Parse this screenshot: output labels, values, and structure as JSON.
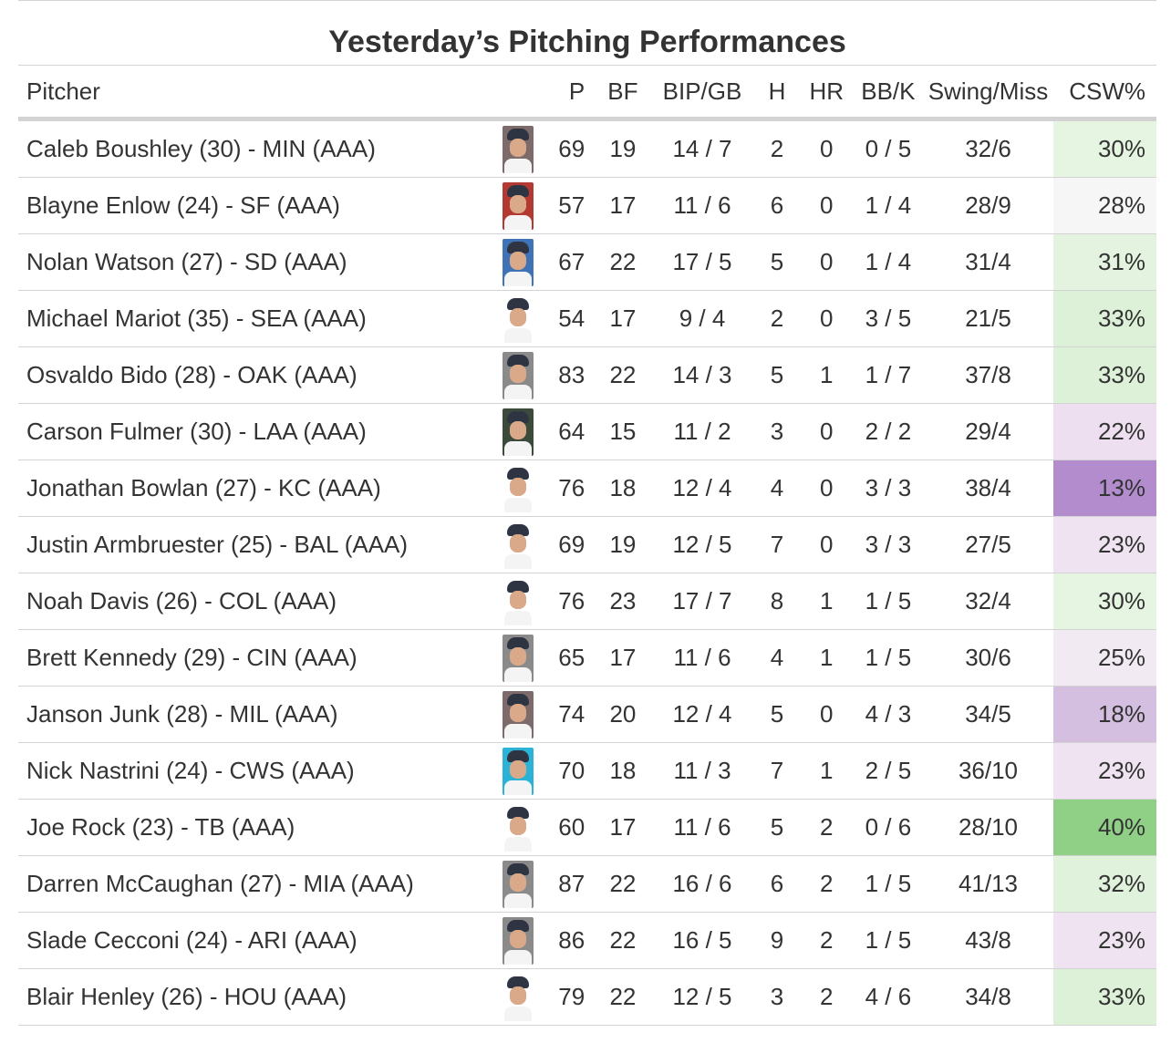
{
  "title": "Yesterday’s Pitching Performances",
  "columns": {
    "pitcher": "Pitcher",
    "p": "P",
    "bf": "BF",
    "bip_gb": "BIP/GB",
    "h": "H",
    "hr": "HR",
    "bb_k": "BB/K",
    "swing_miss": "Swing/Miss",
    "csw": "CSW%"
  },
  "rows": [
    {
      "name": "Caleb Boushley (30) - MIN (AAA)",
      "photo_icon": "player-headshot-icon",
      "photo_bg": "#7d6a6a",
      "p": "69",
      "bf": "19",
      "bip_gb": "14 / 7",
      "h": "2",
      "hr": "0",
      "bb_k": "0 / 5",
      "swing_miss": "32/6",
      "csw": "30%",
      "csw_color": "#e6f4e2"
    },
    {
      "name": "Blayne Enlow (24) - SF (AAA)",
      "photo_icon": "player-headshot-icon",
      "photo_bg": "#b23a32",
      "p": "57",
      "bf": "17",
      "bip_gb": "11 / 6",
      "h": "6",
      "hr": "0",
      "bb_k": "1 / 4",
      "swing_miss": "28/9",
      "csw": "28%",
      "csw_color": "#f6f6f6"
    },
    {
      "name": "Nolan Watson (27) - SD (AAA)",
      "photo_icon": "player-headshot-icon",
      "photo_bg": "#3f73b5",
      "p": "67",
      "bf": "22",
      "bip_gb": "17 / 5",
      "h": "5",
      "hr": "0",
      "bb_k": "1 / 4",
      "swing_miss": "31/4",
      "csw": "31%",
      "csw_color": "#e3f3df"
    },
    {
      "name": "Michael Mariot (35) - SEA (AAA)",
      "photo_icon": "player-headshot-icon",
      "photo_bg": "#ffffff",
      "p": "54",
      "bf": "17",
      "bip_gb": "9 / 4",
      "h": "2",
      "hr": "0",
      "bb_k": "3 / 5",
      "swing_miss": "21/5",
      "csw": "33%",
      "csw_color": "#ddf0d8"
    },
    {
      "name": "Osvaldo Bido (28) - OAK (AAA)",
      "photo_icon": "player-headshot-icon",
      "photo_bg": "#8a8a8a",
      "p": "83",
      "bf": "22",
      "bip_gb": "14 / 3",
      "h": "5",
      "hr": "1",
      "bb_k": "1 / 7",
      "swing_miss": "37/8",
      "csw": "33%",
      "csw_color": "#ddf0d8"
    },
    {
      "name": "Carson Fulmer (30) - LAA (AAA)",
      "photo_icon": "player-headshot-icon",
      "photo_bg": "#3b4a3b",
      "p": "64",
      "bf": "15",
      "bip_gb": "11 / 2",
      "h": "3",
      "hr": "0",
      "bb_k": "2 / 2",
      "swing_miss": "29/4",
      "csw": "22%",
      "csw_color": "#eddff0"
    },
    {
      "name": "Jonathan Bowlan (27) - KC (AAA)",
      "photo_icon": "player-headshot-icon",
      "photo_bg": "#ffffff",
      "p": "76",
      "bf": "18",
      "bip_gb": "12 / 4",
      "h": "4",
      "hr": "0",
      "bb_k": "3 / 3",
      "swing_miss": "38/4",
      "csw": "13%",
      "csw_color": "#b28ccc"
    },
    {
      "name": "Justin Armbruester (25) - BAL (AAA)",
      "photo_icon": "player-headshot-icon",
      "photo_bg": "#ffffff",
      "p": "69",
      "bf": "19",
      "bip_gb": "12 / 5",
      "h": "7",
      "hr": "0",
      "bb_k": "3 / 3",
      "swing_miss": "27/5",
      "csw": "23%",
      "csw_color": "#efe3f1"
    },
    {
      "name": "Noah Davis (26) - COL (AAA)",
      "photo_icon": "player-headshot-icon",
      "photo_bg": "#ffffff",
      "p": "76",
      "bf": "23",
      "bip_gb": "17 / 7",
      "h": "8",
      "hr": "1",
      "bb_k": "1 / 5",
      "swing_miss": "32/4",
      "csw": "30%",
      "csw_color": "#e6f4e2"
    },
    {
      "name": "Brett Kennedy (29) - CIN (AAA)",
      "photo_icon": "player-headshot-icon",
      "photo_bg": "#8a8a8a",
      "p": "65",
      "bf": "17",
      "bip_gb": "11 / 6",
      "h": "4",
      "hr": "1",
      "bb_k": "1 / 5",
      "swing_miss": "30/6",
      "csw": "25%",
      "csw_color": "#f2eaf3"
    },
    {
      "name": "Janson Junk (28) - MIL (AAA)",
      "photo_icon": "player-headshot-icon",
      "photo_bg": "#7d6a6a",
      "p": "74",
      "bf": "20",
      "bip_gb": "12 / 4",
      "h": "5",
      "hr": "0",
      "bb_k": "4 / 3",
      "swing_miss": "34/5",
      "csw": "18%",
      "csw_color": "#d5bfe0"
    },
    {
      "name": "Nick Nastrini (24) - CWS (AAA)",
      "photo_icon": "player-headshot-icon",
      "photo_bg": "#2ab3d6",
      "p": "70",
      "bf": "18",
      "bip_gb": "11 / 3",
      "h": "7",
      "hr": "1",
      "bb_k": "2 / 5",
      "swing_miss": "36/10",
      "csw": "23%",
      "csw_color": "#efe3f1"
    },
    {
      "name": "Joe Rock (23) - TB (AAA)",
      "photo_icon": "player-headshot-icon",
      "photo_bg": "#ffffff",
      "p": "60",
      "bf": "17",
      "bip_gb": "11 / 6",
      "h": "5",
      "hr": "2",
      "bb_k": "0 / 6",
      "swing_miss": "28/10",
      "csw": "40%",
      "csw_color": "#8fcf86"
    },
    {
      "name": "Darren McCaughan (27) - MIA (AAA)",
      "photo_icon": "player-headshot-icon",
      "photo_bg": "#8a8a8a",
      "p": "87",
      "bf": "22",
      "bip_gb": "16 / 6",
      "h": "6",
      "hr": "2",
      "bb_k": "1 / 5",
      "swing_miss": "41/13",
      "csw": "32%",
      "csw_color": "#e0f2dc"
    },
    {
      "name": "Slade Cecconi (24) - ARI (AAA)",
      "photo_icon": "player-headshot-icon",
      "photo_bg": "#8a8a8a",
      "p": "86",
      "bf": "22",
      "bip_gb": "16 / 5",
      "h": "9",
      "hr": "2",
      "bb_k": "1 / 5",
      "swing_miss": "43/8",
      "csw": "23%",
      "csw_color": "#efe3f1"
    },
    {
      "name": "Blair Henley (26) - HOU (AAA)",
      "photo_icon": "player-headshot-icon",
      "photo_bg": "#ffffff",
      "p": "79",
      "bf": "22",
      "bip_gb": "12 / 5",
      "h": "3",
      "hr": "2",
      "bb_k": "4 / 6",
      "swing_miss": "34/8",
      "csw": "33%",
      "csw_color": "#ddf0d8"
    }
  ]
}
